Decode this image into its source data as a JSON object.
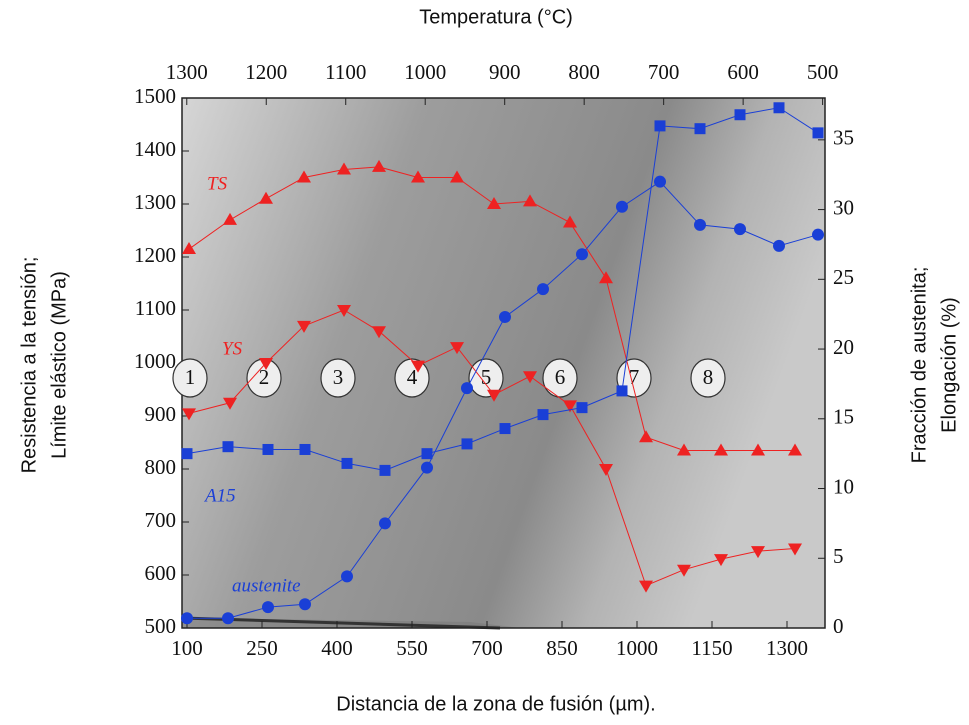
{
  "chart_data": {
    "type": "line",
    "x_title": "Distancia de la zona de fusión (µm).",
    "x2_title": "Temperatura (°C)",
    "y_title": [
      "Resistencia a la tensión;",
      "Límite elástico (MPa)"
    ],
    "y2_title": [
      "Fracción de austenita;",
      "Elongación (%)"
    ],
    "xlim": [
      90,
      1376
    ],
    "xticks": [
      100,
      250,
      400,
      550,
      700,
      850,
      1000,
      1150,
      1300
    ],
    "x2lim": [
      1306,
      497
    ],
    "x2ticks": [
      1300,
      1200,
      1100,
      1000,
      900,
      800,
      700,
      600,
      500
    ],
    "ylim": [
      500,
      1500
    ],
    "yticks": [
      500,
      600,
      700,
      800,
      900,
      1000,
      1100,
      1200,
      1300,
      1400,
      1500
    ],
    "y2lim": [
      0,
      38
    ],
    "y2ticks": [
      0,
      5,
      10,
      15,
      20,
      25,
      30,
      35
    ],
    "zones": [
      "1",
      "2",
      "3",
      "4",
      "5",
      "6",
      "7",
      "8"
    ],
    "series": [
      {
        "name": "TS",
        "color": "#ee2222",
        "marker": "triangle-up",
        "axis": "y",
        "x": [
          104,
          186,
          258,
          334,
          414,
          484,
          562,
          640,
          714,
          786,
          866,
          938,
          1018,
          1094,
          1168,
          1242,
          1316
        ],
        "values": [
          1215,
          1270,
          1310,
          1350,
          1365,
          1370,
          1350,
          1350,
          1300,
          1305,
          1265,
          1160,
          860,
          835,
          835,
          835,
          835
        ]
      },
      {
        "name": "YS",
        "color": "#ee2222",
        "marker": "triangle-down",
        "axis": "y",
        "x": [
          104,
          186,
          258,
          334,
          414,
          484,
          562,
          640,
          714,
          786,
          866,
          938,
          1018,
          1094,
          1168,
          1242,
          1316
        ],
        "values": [
          905,
          925,
          1000,
          1070,
          1100,
          1060,
          995,
          1030,
          940,
          975,
          920,
          800,
          580,
          610,
          630,
          645,
          650
        ]
      },
      {
        "name": "A15",
        "color": "#1a3fd6",
        "marker": "square",
        "axis": "y2",
        "x": [
          100,
          182,
          262,
          336,
          420,
          496,
          580,
          660,
          736,
          812,
          890,
          970,
          1046,
          1126,
          1206,
          1284,
          1362
        ],
        "values": [
          12.5,
          13,
          12.8,
          12.8,
          11.8,
          11.3,
          12.5,
          13.2,
          14.3,
          15.3,
          15.8,
          17,
          36,
          35.8,
          36.8,
          37.3,
          35.5
        ]
      },
      {
        "name": "austenite",
        "color": "#1a3fd6",
        "marker": "circle",
        "axis": "y2",
        "x": [
          100,
          182,
          262,
          336,
          420,
          496,
          580,
          660,
          736,
          812,
          890,
          970,
          1046,
          1126,
          1206,
          1284,
          1362
        ],
        "values": [
          0.7,
          0.7,
          1.5,
          1.7,
          3.7,
          7.5,
          11.5,
          17.2,
          22.3,
          24.3,
          26.8,
          30.2,
          32,
          28.9,
          28.6,
          27.4,
          28.2
        ]
      }
    ]
  }
}
